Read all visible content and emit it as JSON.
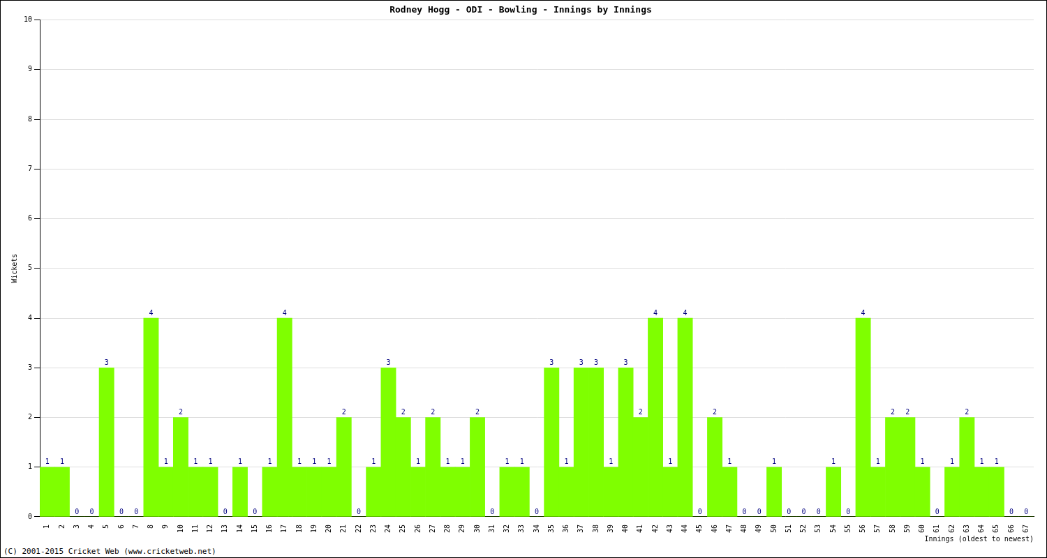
{
  "chart_data": {
    "type": "bar",
    "title": "Rodney Hogg - ODI - Bowling - Innings by Innings",
    "x_label": "Innings (oldest to newest)",
    "y_label": "Wickets",
    "annotations": [
      "(C) 2001-2015 Cricket Web (www.cricketweb.net)"
    ],
    "categories": [
      "1",
      "2",
      "3",
      "4",
      "5",
      "6",
      "7",
      "8",
      "9",
      "10",
      "11",
      "12",
      "13",
      "14",
      "15",
      "16",
      "17",
      "18",
      "19",
      "20",
      "21",
      "22",
      "23",
      "24",
      "25",
      "26",
      "27",
      "28",
      "29",
      "30",
      "31",
      "32",
      "33",
      "34",
      "35",
      "36",
      "37",
      "38",
      "39",
      "40",
      "41",
      "42",
      "43",
      "44",
      "45",
      "46",
      "47",
      "48",
      "49",
      "50",
      "51",
      "52",
      "53",
      "54",
      "55",
      "56",
      "57",
      "58",
      "59",
      "60",
      "61",
      "62",
      "63",
      "64",
      "65",
      "66",
      "67"
    ],
    "values": [
      1,
      1,
      0,
      0,
      3,
      0,
      0,
      4,
      1,
      2,
      1,
      1,
      0,
      1,
      0,
      1,
      4,
      1,
      1,
      1,
      2,
      0,
      1,
      3,
      2,
      1,
      2,
      1,
      1,
      2,
      0,
      1,
      1,
      0,
      3,
      1,
      3,
      3,
      1,
      3,
      2,
      4,
      1,
      4,
      0,
      2,
      1,
      0,
      0,
      1,
      0,
      0,
      0,
      1,
      0,
      4,
      1,
      2,
      2,
      1,
      0,
      1,
      2,
      1,
      1,
      0,
      0
    ],
    "color": "#7fff00",
    "ylim": [
      0,
      10
    ],
    "yticks": [
      0,
      1,
      2,
      3,
      4,
      5,
      6,
      7,
      8,
      9,
      10
    ],
    "grid": true,
    "data_labels": true
  }
}
